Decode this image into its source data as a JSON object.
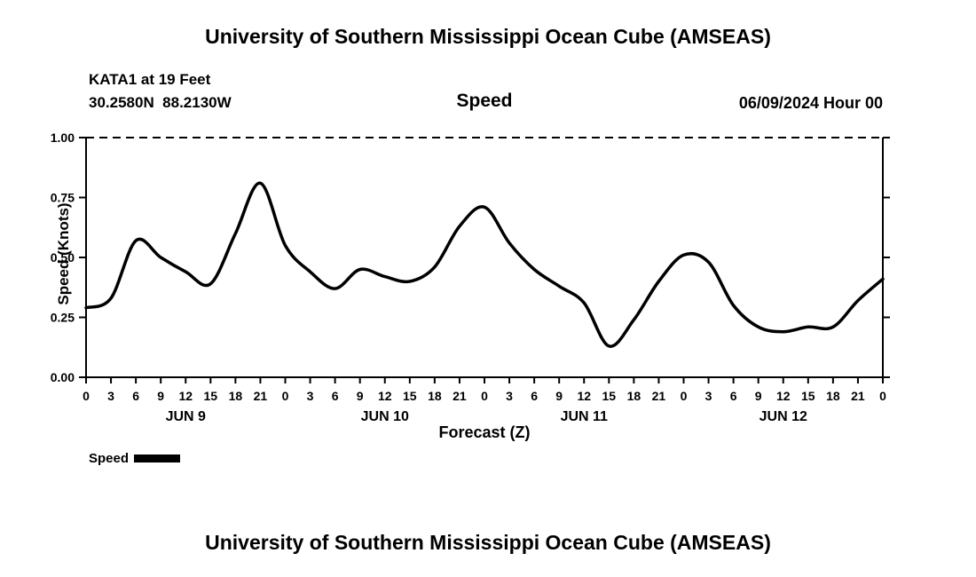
{
  "header": {
    "title": "University of Southern Mississippi Ocean Cube (AMSEAS)",
    "station_line1": "KATA1 at 19 Feet",
    "station_line2": "30.2580N  88.2130W",
    "panel_title": "Speed",
    "datetime": "06/09/2024 Hour 00"
  },
  "legend": {
    "label": "Speed",
    "swatch_color": "#000000"
  },
  "footer": {
    "next_chart_title": "University of Southern Mississippi Ocean Cube (AMSEAS)"
  },
  "chart_data": {
    "type": "line",
    "title": "Speed",
    "xlabel": "Forecast (Z)",
    "ylabel": "Speed (Knots)",
    "ylim": [
      0.0,
      1.0
    ],
    "grid": "top border dashed, ticks on all sides, no interior gridlines",
    "legend_position": "below-left",
    "line_color": "#000000",
    "yticks": [
      {
        "value": 0.0,
        "label": "0.00"
      },
      {
        "value": 0.25,
        "label": "0.25"
      },
      {
        "value": 0.5,
        "label": "0.50"
      },
      {
        "value": 0.75,
        "label": "0.75"
      },
      {
        "value": 1.0,
        "label": "1.00"
      }
    ],
    "x_hours_total": 96,
    "x_ticks": [
      {
        "hour": 0,
        "label": "0"
      },
      {
        "hour": 3,
        "label": "3"
      },
      {
        "hour": 6,
        "label": "6"
      },
      {
        "hour": 9,
        "label": "9"
      },
      {
        "hour": 12,
        "label": "12"
      },
      {
        "hour": 15,
        "label": "15"
      },
      {
        "hour": 18,
        "label": "18"
      },
      {
        "hour": 21,
        "label": "21"
      },
      {
        "hour": 24,
        "label": "0"
      },
      {
        "hour": 27,
        "label": "3"
      },
      {
        "hour": 30,
        "label": "6"
      },
      {
        "hour": 33,
        "label": "9"
      },
      {
        "hour": 36,
        "label": "12"
      },
      {
        "hour": 39,
        "label": "15"
      },
      {
        "hour": 42,
        "label": "18"
      },
      {
        "hour": 45,
        "label": "21"
      },
      {
        "hour": 48,
        "label": "0"
      },
      {
        "hour": 51,
        "label": "3"
      },
      {
        "hour": 54,
        "label": "6"
      },
      {
        "hour": 57,
        "label": "9"
      },
      {
        "hour": 60,
        "label": "12"
      },
      {
        "hour": 63,
        "label": "15"
      },
      {
        "hour": 66,
        "label": "18"
      },
      {
        "hour": 69,
        "label": "21"
      },
      {
        "hour": 72,
        "label": "0"
      },
      {
        "hour": 75,
        "label": "3"
      },
      {
        "hour": 78,
        "label": "6"
      },
      {
        "hour": 81,
        "label": "9"
      },
      {
        "hour": 84,
        "label": "12"
      },
      {
        "hour": 87,
        "label": "15"
      },
      {
        "hour": 90,
        "label": "18"
      },
      {
        "hour": 93,
        "label": "21"
      },
      {
        "hour": 96,
        "label": "0"
      }
    ],
    "day_labels": [
      {
        "label": "JUN 9",
        "hour": 12
      },
      {
        "label": "JUN 10",
        "hour": 36
      },
      {
        "label": "JUN 11",
        "hour": 60
      },
      {
        "label": "JUN 12",
        "hour": 84
      }
    ],
    "series": [
      {
        "name": "Speed",
        "color": "#000000",
        "x_hours": [
          0,
          3,
          6,
          9,
          12,
          15,
          18,
          21,
          24,
          27,
          30,
          33,
          36,
          39,
          42,
          45,
          48,
          51,
          54,
          57,
          60,
          63,
          66,
          69,
          72,
          75,
          78,
          81,
          84,
          87,
          90,
          93,
          96
        ],
        "values": [
          0.29,
          0.33,
          0.57,
          0.5,
          0.44,
          0.39,
          0.6,
          0.81,
          0.55,
          0.44,
          0.37,
          0.45,
          0.42,
          0.4,
          0.46,
          0.63,
          0.71,
          0.56,
          0.45,
          0.38,
          0.31,
          0.13,
          0.24,
          0.4,
          0.51,
          0.48,
          0.3,
          0.21,
          0.19,
          0.21,
          0.21,
          0.32,
          0.41
        ]
      }
    ]
  }
}
